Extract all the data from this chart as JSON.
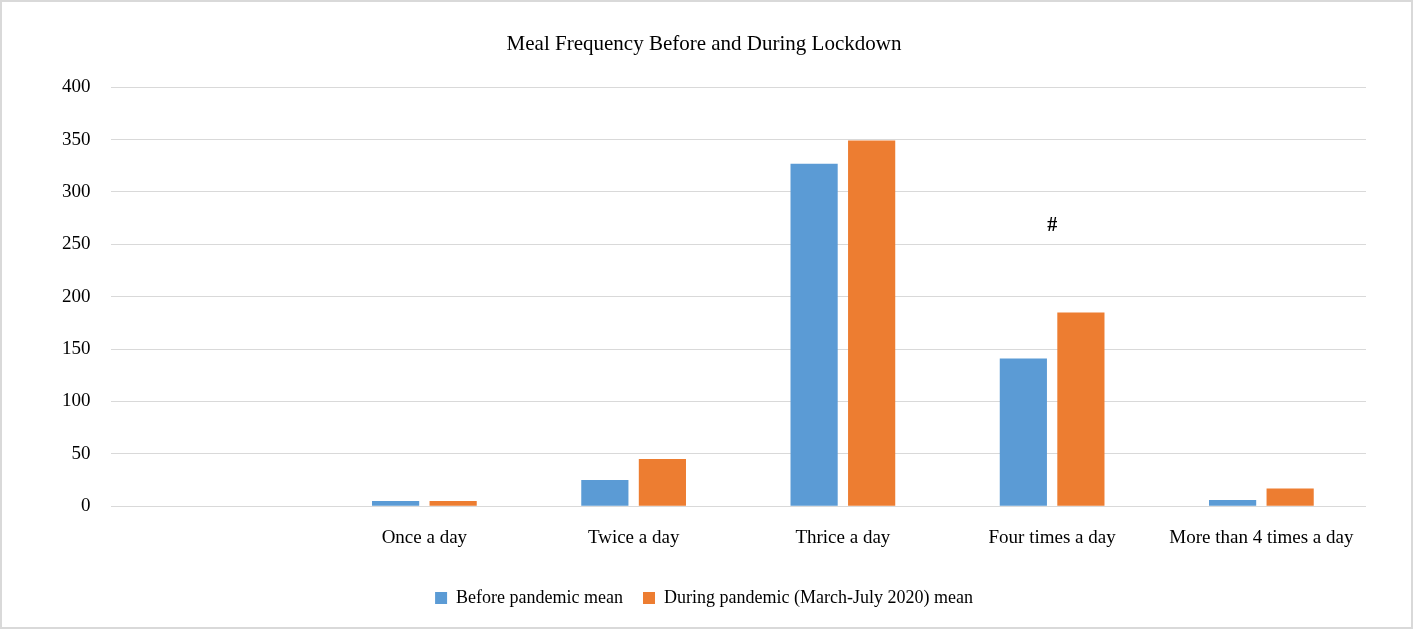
{
  "chart_data": {
    "type": "bar",
    "title": "Meal Frequency Before and During Lockdown",
    "categories": [
      null,
      "Once a day",
      "Twice a day",
      "Thrice a day",
      "Four times a day",
      "More than 4 times a day"
    ],
    "series": [
      {
        "name": "Before pandemic mean",
        "color": "#5b9bd5",
        "values": [
          null,
          5,
          25,
          327,
          141,
          6
        ]
      },
      {
        "name": "During pandemic (March-July 2020) mean",
        "color": "#ed7d31",
        "values": [
          null,
          5,
          45,
          349,
          185,
          17
        ]
      }
    ],
    "ylim": [
      0,
      400
    ],
    "yticks": [
      0,
      50,
      100,
      150,
      200,
      250,
      300,
      350,
      400
    ],
    "grid": "y",
    "legend": "bottom",
    "annotations": [
      "#"
    ]
  }
}
